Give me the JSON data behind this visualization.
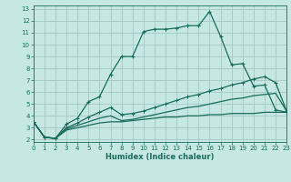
{
  "xlabel": "Humidex (Indice chaleur)",
  "x_ticks": [
    0,
    1,
    2,
    3,
    4,
    5,
    6,
    7,
    8,
    9,
    10,
    11,
    12,
    13,
    14,
    15,
    16,
    17,
    18,
    19,
    20,
    21,
    22,
    23
  ],
  "y_ticks": [
    2,
    3,
    4,
    5,
    6,
    7,
    8,
    9,
    10,
    11,
    12,
    13
  ],
  "xlim": [
    0,
    23
  ],
  "ylim": [
    1.8,
    13.3
  ],
  "bg_color": "#c5e8e2",
  "grid_color": "#a8ccc8",
  "line_color": "#1a6b5a",
  "series1_x": [
    0,
    1,
    2,
    3,
    4,
    5,
    6,
    7,
    8,
    9,
    10,
    11,
    12,
    13,
    14,
    15,
    16,
    17,
    18,
    19,
    20,
    21,
    22,
    23
  ],
  "series1_y": [
    3.5,
    2.2,
    2.1,
    3.3,
    3.8,
    5.2,
    5.6,
    7.5,
    9.0,
    9.0,
    11.1,
    11.3,
    11.3,
    11.4,
    11.6,
    11.6,
    12.8,
    10.7,
    8.3,
    8.4,
    6.5,
    6.6,
    4.5,
    4.3
  ],
  "series2_x": [
    0,
    1,
    2,
    3,
    4,
    5,
    6,
    7,
    8,
    9,
    10,
    11,
    12,
    13,
    14,
    15,
    16,
    17,
    18,
    19,
    20,
    21,
    22,
    23
  ],
  "series2_y": [
    3.5,
    2.2,
    2.1,
    3.0,
    3.4,
    3.9,
    4.3,
    4.7,
    4.1,
    4.2,
    4.4,
    4.7,
    5.0,
    5.3,
    5.6,
    5.8,
    6.1,
    6.3,
    6.6,
    6.8,
    7.1,
    7.3,
    6.8,
    4.4
  ],
  "series3_x": [
    0,
    1,
    2,
    3,
    4,
    5,
    6,
    7,
    8,
    9,
    10,
    11,
    12,
    13,
    14,
    15,
    16,
    17,
    18,
    19,
    20,
    21,
    22,
    23
  ],
  "series3_y": [
    3.5,
    2.2,
    2.1,
    2.9,
    3.2,
    3.5,
    3.8,
    4.0,
    3.6,
    3.7,
    3.9,
    4.1,
    4.3,
    4.5,
    4.7,
    4.8,
    5.0,
    5.2,
    5.4,
    5.5,
    5.7,
    5.8,
    5.9,
    4.4
  ],
  "series4_x": [
    0,
    1,
    2,
    3,
    4,
    5,
    6,
    7,
    8,
    9,
    10,
    11,
    12,
    13,
    14,
    15,
    16,
    17,
    18,
    19,
    20,
    21,
    22,
    23
  ],
  "series4_y": [
    3.5,
    2.2,
    2.1,
    2.8,
    3.0,
    3.2,
    3.4,
    3.5,
    3.5,
    3.6,
    3.7,
    3.8,
    3.9,
    3.9,
    4.0,
    4.0,
    4.1,
    4.1,
    4.2,
    4.2,
    4.2,
    4.3,
    4.3,
    4.3
  ]
}
